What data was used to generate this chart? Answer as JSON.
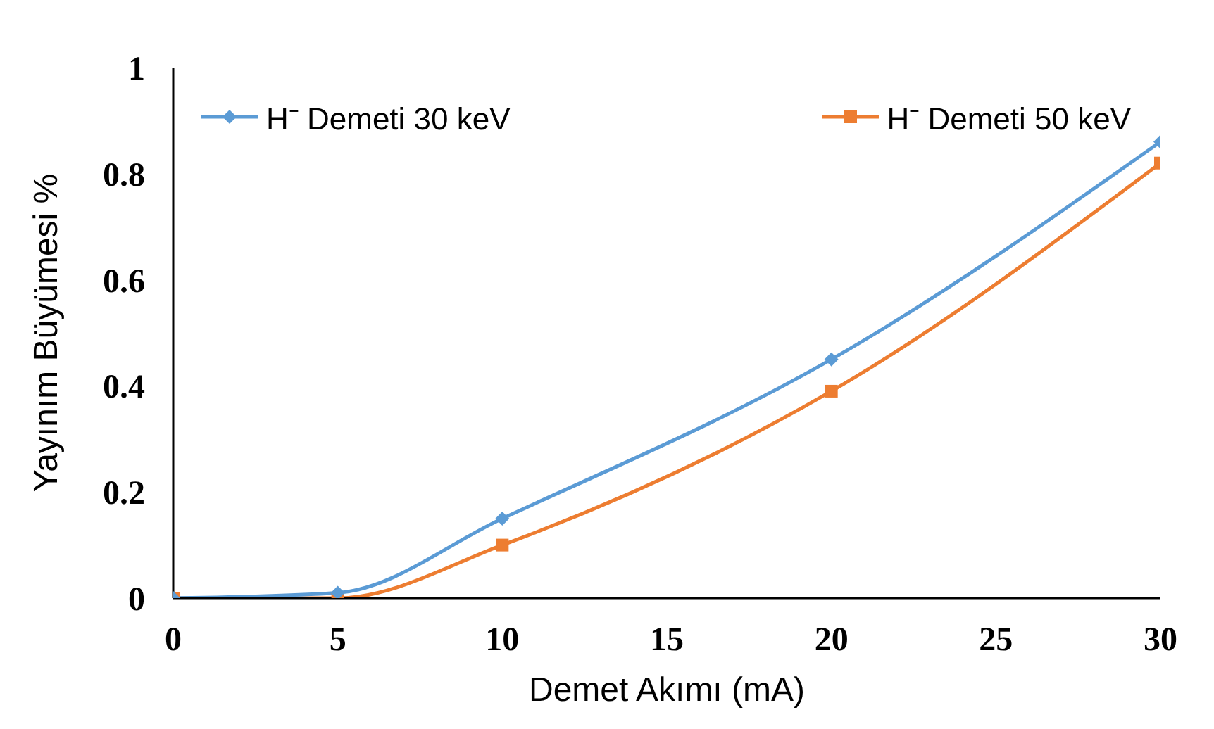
{
  "chart_data": {
    "type": "line",
    "xlabel": "Demet Akımı (mA)",
    "ylabel": "Yayınım Büyümesi %",
    "x": [
      0,
      5,
      10,
      20,
      30
    ],
    "series": [
      {
        "name": "H⁻ Demeti 30 keV",
        "color": "#5b9bd5",
        "marker": "diamond",
        "values": [
          0,
          0.01,
          0.15,
          0.45,
          0.86
        ]
      },
      {
        "name": "H⁻ Demeti 50 keV",
        "color": "#ed7d31",
        "marker": "square",
        "values": [
          0,
          0,
          0.1,
          0.39,
          0.82
        ]
      }
    ],
    "xlim": [
      0,
      30
    ],
    "xticks": [
      0,
      5,
      10,
      15,
      20,
      25,
      30
    ],
    "ylim": [
      0,
      1
    ],
    "yticks": [
      0,
      0.2,
      0.4,
      0.6,
      0.8,
      1
    ],
    "grid": false,
    "legend": "top"
  }
}
